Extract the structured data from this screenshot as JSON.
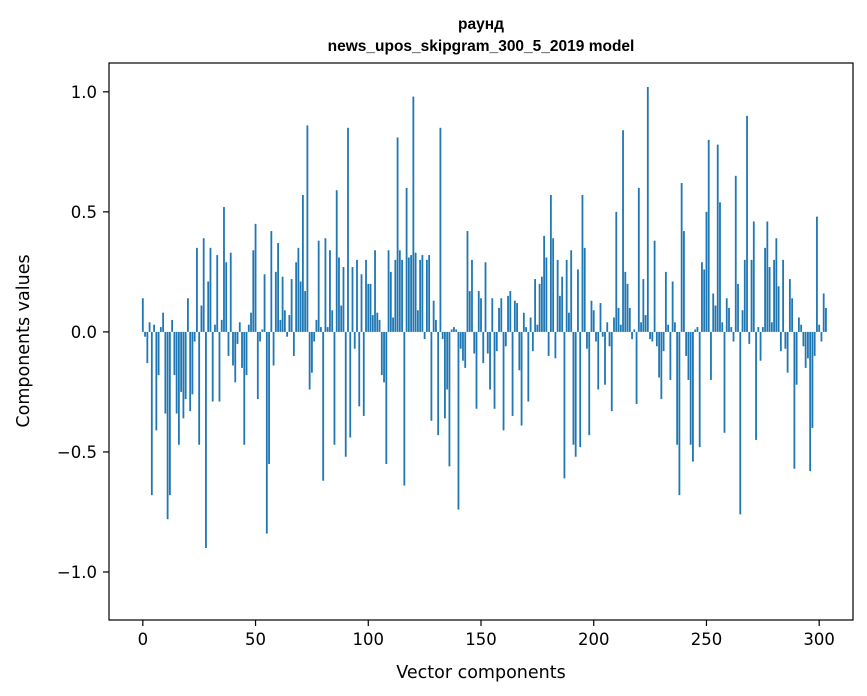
{
  "chart_data": {
    "type": "bar",
    "title_line1": "раунд",
    "title_line2": "news_upos_skipgram_300_5_2019 model",
    "xlabel": "Vector components",
    "ylabel": "Components values",
    "xlim": [
      -15,
      315
    ],
    "ylim": [
      -1.2,
      1.12
    ],
    "xticks": [
      0,
      50,
      100,
      150,
      200,
      250,
      300
    ],
    "xtick_labels": [
      "0",
      "50",
      "100",
      "150",
      "200",
      "250",
      "300"
    ],
    "yticks": [
      -1.0,
      -0.5,
      0.0,
      0.5,
      1.0
    ],
    "ytick_labels": [
      "−1.0",
      "−0.5",
      "0.0",
      "0.5",
      "1.0"
    ],
    "bar_color": "#1f77b4",
    "values": [
      0.14,
      -0.02,
      -0.13,
      0.04,
      -0.68,
      0.03,
      -0.41,
      -0.18,
      0.02,
      0.08,
      -0.34,
      -0.78,
      -0.68,
      0.05,
      -0.18,
      -0.34,
      -0.47,
      -0.25,
      -0.36,
      -0.28,
      0.14,
      -0.33,
      -0.26,
      -0.04,
      0.35,
      -0.47,
      0.11,
      0.39,
      -0.9,
      0.21,
      0.35,
      -0.29,
      0.03,
      0.32,
      -0.29,
      0.05,
      0.52,
      0.29,
      -0.1,
      0.33,
      -0.14,
      -0.21,
      -0.05,
      0.04,
      -0.15,
      -0.47,
      -0.18,
      0.03,
      0.08,
      0.34,
      0.45,
      -0.28,
      -0.04,
      0.01,
      0.24,
      -0.84,
      -0.55,
      0.42,
      -0.14,
      0.25,
      0.37,
      0.05,
      0.23,
      0.09,
      -0.02,
      0.07,
      0.22,
      -0.1,
      0.29,
      0.35,
      0.21,
      0.57,
      0.17,
      0.86,
      -0.24,
      -0.17,
      -0.04,
      0.05,
      0.38,
      0.02,
      -0.62,
      0.39,
      0.02,
      0.34,
      0.09,
      -0.47,
      0.59,
      0.31,
      0.11,
      0.27,
      -0.52,
      0.85,
      -0.44,
      0.27,
      -0.07,
      0.3,
      -0.31,
      0.24,
      -0.35,
      0.3,
      0.2,
      0.2,
      0.07,
      0.34,
      0.08,
      0.05,
      -0.18,
      -0.21,
      -0.55,
      0.34,
      0.25,
      0.06,
      0.3,
      0.81,
      0.34,
      0.3,
      -0.64,
      0.6,
      0.31,
      0.32,
      0.98,
      0.33,
      0.09,
      0.3,
      0.32,
      -0.03,
      0.3,
      0.32,
      -0.37,
      0.13,
      0.05,
      -0.43,
      0.85,
      -0.03,
      -0.36,
      -0.24,
      -0.56,
      0.01,
      0.02,
      0.01,
      -0.74,
      -0.07,
      -0.12,
      -0.15,
      0.42,
      0.17,
      0.3,
      -0.09,
      -0.32,
      0.17,
      0.14,
      -0.13,
      0.29,
      -0.09,
      -0.24,
      0.14,
      -0.32,
      -0.08,
      0.1,
      0.14,
      -0.41,
      -0.06,
      0.15,
      0.17,
      -0.35,
      0.13,
      0.12,
      -0.16,
      -0.39,
      0.08,
      0.02,
      -0.29,
      0.06,
      -0.08,
      0.22,
      0.03,
      0.2,
      0.23,
      0.4,
      0.31,
      -0.1,
      0.57,
      0.39,
      -0.11,
      0.3,
      0.15,
      0.23,
      -0.61,
      0.3,
      0.08,
      0.34,
      -0.47,
      -0.52,
      0.26,
      -0.48,
      0.57,
      0.35,
      -0.07,
      -0.43,
      0.13,
      0.09,
      -0.04,
      -0.24,
      0.12,
      -0.02,
      -0.22,
      0.04,
      -0.06,
      -0.33,
      0.06,
      0.5,
      0.1,
      0.03,
      0.84,
      0.25,
      0.2,
      0.1,
      -0.03,
      0.01,
      -0.3,
      0.6,
      0.04,
      0.22,
      0.07,
      1.02,
      -0.03,
      -0.04,
      0.38,
      -0.06,
      -0.19,
      -0.28,
      -0.08,
      0.25,
      0.03,
      -0.2,
      0.21,
      0.04,
      -0.47,
      -0.68,
      0.62,
      0.42,
      -0.1,
      -0.2,
      -0.47,
      -0.54,
      0.01,
      0.02,
      -0.48,
      0.29,
      0.26,
      0.5,
      0.8,
      -0.2,
      0.16,
      0.11,
      0.78,
      0.54,
      0.04,
      -0.42,
      0.14,
      0.1,
      0.02,
      -0.04,
      0.65,
      0.2,
      -0.76,
      0.09,
      0.3,
      0.9,
      -0.05,
      0.3,
      0.46,
      -0.45,
      0.02,
      -0.12,
      0.02,
      0.35,
      0.46,
      0.27,
      0.04,
      0.3,
      0.39,
      0.19,
      -0.08,
      0.3,
      -0.07,
      -0.17,
      0.22,
      0.14,
      -0.57,
      -0.22,
      0.06,
      0.03,
      -0.06,
      -0.15,
      -0.11,
      -0.58,
      -0.4,
      -0.1,
      0.48,
      0.03,
      -0.04,
      0.16,
      0.1
    ]
  }
}
